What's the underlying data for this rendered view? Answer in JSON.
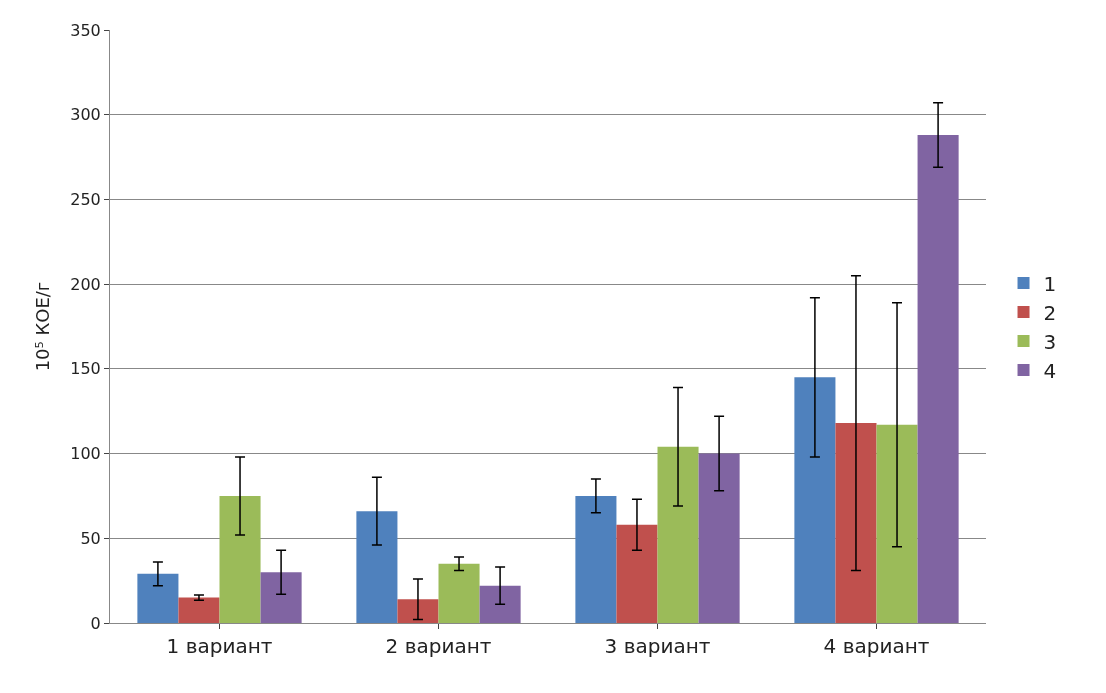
{
  "chart_data": {
    "type": "bar",
    "ylabel": "10⁵ КОЕ/г",
    "categories": [
      "1 вариант",
      "2 вариант",
      "3 вариант",
      "4 вариант"
    ],
    "series": [
      {
        "name": "1",
        "color": "#4f81bd",
        "values": [
          29,
          66,
          75,
          145
        ],
        "errors": [
          7,
          20,
          10,
          47
        ]
      },
      {
        "name": "2",
        "color": "#c0504d",
        "values": [
          15,
          14,
          58,
          118
        ],
        "errors": [
          1.5,
          12,
          15,
          87
        ]
      },
      {
        "name": "3",
        "color": "#9bbb59",
        "values": [
          75,
          35,
          104,
          117
        ],
        "errors": [
          23,
          4,
          35,
          72
        ]
      },
      {
        "name": "4",
        "color": "#8064a2",
        "values": [
          30,
          22,
          100,
          288
        ],
        "errors": [
          13,
          11,
          22,
          19
        ]
      }
    ],
    "ylim": [
      0,
      350
    ],
    "yticks": [
      0,
      50,
      100,
      150,
      200,
      250,
      300,
      350
    ],
    "grid": "y",
    "legend": "right"
  }
}
